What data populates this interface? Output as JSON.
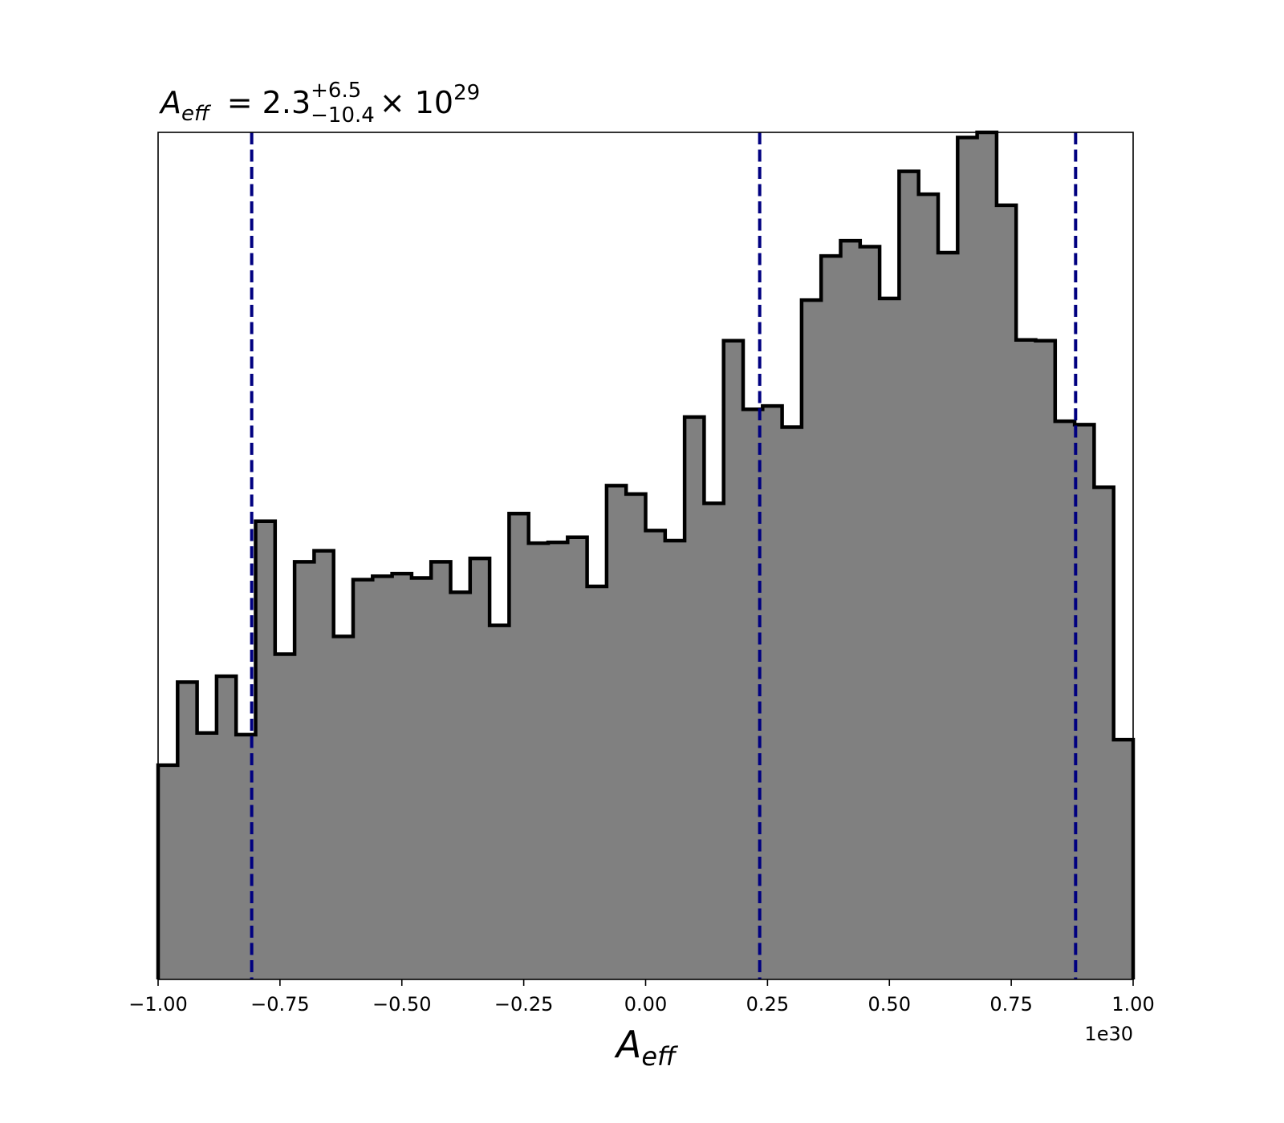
{
  "chart_data": {
    "type": "histogram",
    "title": {
      "symbol": "A",
      "symbol_sub": "eff",
      "equals": "= 2.3",
      "sup": "+6.5",
      "sub": "−10.4",
      "times": "× 10",
      "exponent": "29"
    },
    "xlabel": {
      "symbol": "A",
      "sub": "eff"
    },
    "ylabel": "",
    "x_offset_label": "1e30",
    "xlim": [
      -1.0,
      1.0
    ],
    "ylim": [
      0,
      1
    ],
    "y_ticks_shown": false,
    "xticks": [
      {
        "value": -1.0,
        "label": "−1.00"
      },
      {
        "value": -0.75,
        "label": "−0.75"
      },
      {
        "value": -0.5,
        "label": "−0.50"
      },
      {
        "value": -0.25,
        "label": "−0.25"
      },
      {
        "value": 0.0,
        "label": "0.00"
      },
      {
        "value": 0.25,
        "label": "0.25"
      },
      {
        "value": 0.5,
        "label": "0.50"
      },
      {
        "value": 0.75,
        "label": "0.75"
      },
      {
        "value": 1.0,
        "label": "1.00"
      }
    ],
    "bin_edges": [
      -1.0,
      -0.96,
      -0.92,
      -0.88,
      -0.84,
      -0.8,
      -0.76,
      -0.72,
      -0.68,
      -0.64,
      -0.6,
      -0.56,
      -0.52,
      -0.48,
      -0.44,
      -0.4,
      -0.36,
      -0.32,
      -0.28,
      -0.24,
      -0.2,
      -0.16,
      -0.12,
      -0.08,
      -0.04,
      0.0,
      0.04,
      0.08,
      0.12,
      0.16,
      0.2,
      0.24,
      0.28,
      0.32,
      0.36,
      0.4,
      0.44,
      0.48,
      0.52,
      0.56,
      0.6,
      0.64,
      0.68,
      0.72,
      0.76,
      0.8,
      0.84,
      0.88,
      0.92,
      0.96,
      1.0
    ],
    "counts": [
      0.253,
      0.351,
      0.291,
      0.358,
      0.289,
      0.541,
      0.384,
      0.493,
      0.506,
      0.405,
      0.472,
      0.476,
      0.479,
      0.474,
      0.493,
      0.457,
      0.497,
      0.418,
      0.55,
      0.515,
      0.516,
      0.522,
      0.464,
      0.583,
      0.573,
      0.53,
      0.518,
      0.664,
      0.562,
      0.754,
      0.673,
      0.677,
      0.652,
      0.802,
      0.854,
      0.872,
      0.865,
      0.804,
      0.954,
      0.927,
      0.858,
      0.994,
      1.0,
      0.914,
      0.755,
      0.754,
      0.659,
      0.655,
      0.581,
      0.283
    ],
    "vlines": [
      -0.808,
      0.234,
      0.882
    ],
    "colors": {
      "bar_fill": "#808080",
      "bar_edge": "#000000",
      "vline": "#000080"
    }
  }
}
